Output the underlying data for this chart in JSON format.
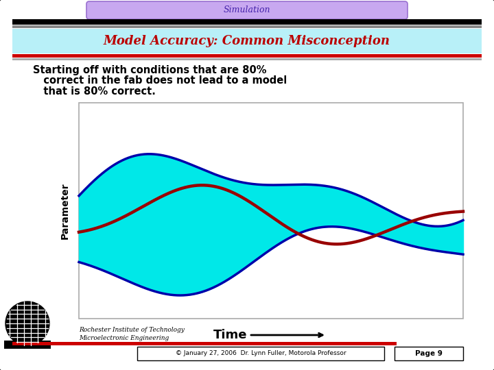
{
  "title_bar": "Simulation",
  "subtitle": "Model Accuracy: Common Misconception",
  "body_text_line1": "Starting off with conditions that are 80%",
  "body_text_line2": "   correct in the fab does not lead to a model",
  "body_text_line3": "   that is 80% correct.",
  "xlabel": "Time",
  "ylabel": "Parameter",
  "footer_left1": "Rochester Institute of Technology",
  "footer_left2": "Microelectronic Engineering",
  "footer_center": "© January 27, 2006  Dr. Lynn Fuller, Motorola Professor",
  "footer_right": "Page 9",
  "outer_bg": "#d0d0d8",
  "slide_bg": "#ffffff",
  "title_bg": "#c8a8f0",
  "subtitle_bg": "#b8f0f8",
  "plot_fill_color": "#00e8e8",
  "upper_line_color": "#0000aa",
  "lower_line_color": "#0000aa",
  "center_line_color": "#990000",
  "border_color": "#1a1a1a"
}
